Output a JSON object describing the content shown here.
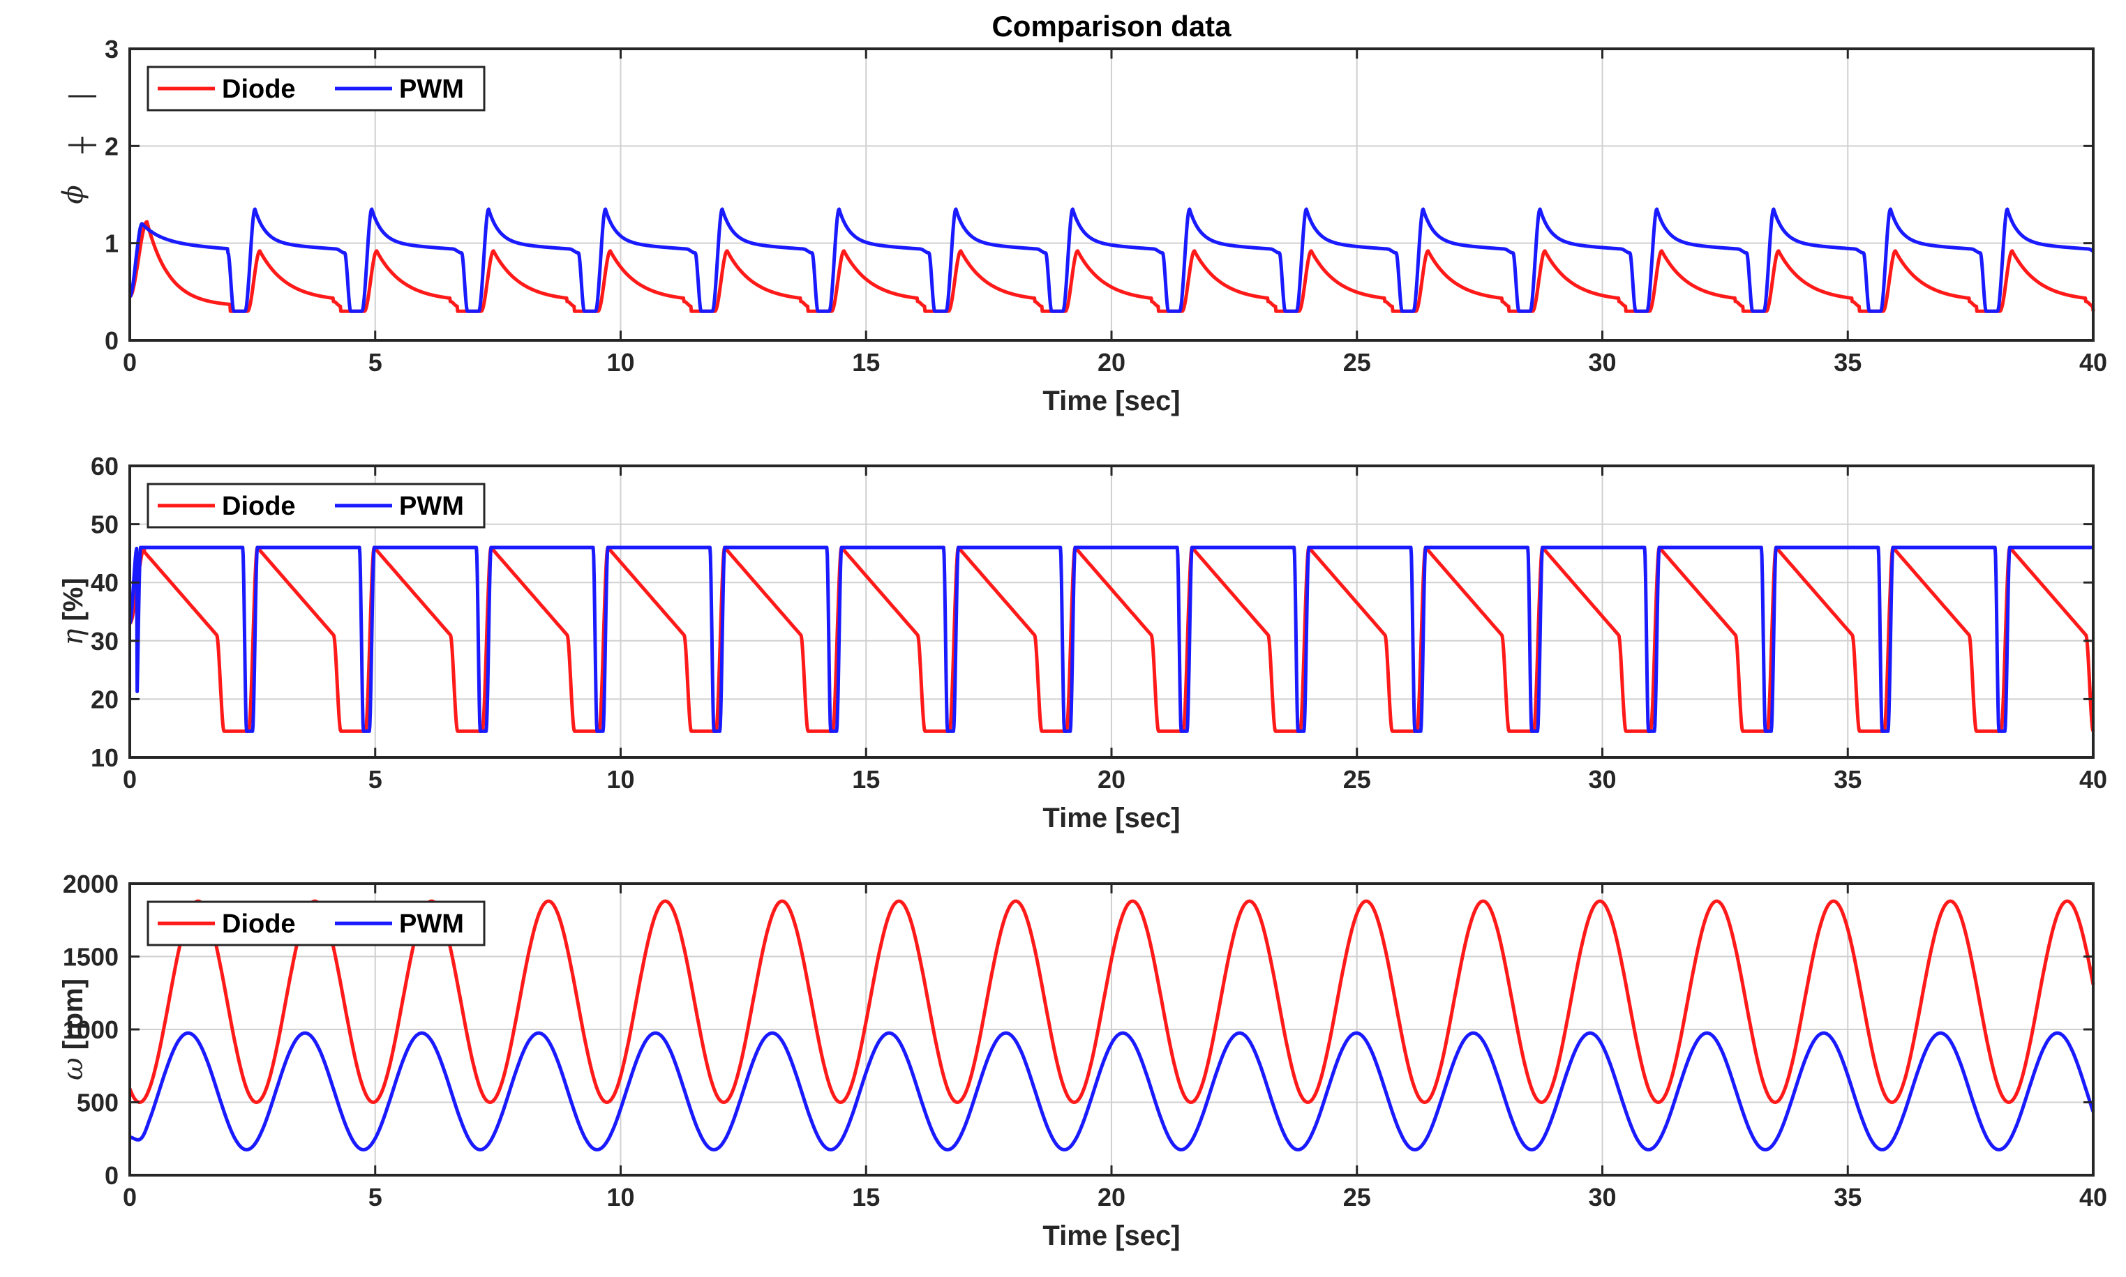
{
  "figure_title": "Comparison data",
  "colors": {
    "diode": "#ff1a1a",
    "pwm": "#1a1aff",
    "grid": "#d0d0d0",
    "axis": "#262626"
  },
  "legend": {
    "diode_label": "Diode",
    "pwm_label": "PWM"
  },
  "chart_data": [
    {
      "type": "line",
      "title": "Comparison data",
      "xlabel": "Time [sec]",
      "ylabel_symbol": "ϕ",
      "ylabel_unit": "",
      "xlim": [
        0,
        40
      ],
      "ylim": [
        0,
        3
      ],
      "xticks": [
        0,
        5,
        10,
        15,
        20,
        25,
        30,
        35,
        40
      ],
      "xtick_labels": [
        "0",
        "5",
        "10",
        "15",
        "20",
        "25",
        "30",
        "35",
        "40"
      ],
      "yticks": [
        0,
        1,
        2,
        3
      ],
      "ytick_labels": [
        "0",
        "1",
        "2",
        "3"
      ],
      "grid": true,
      "legend_position": "top-left",
      "period_sec": 2.38,
      "series": [
        {
          "name": "Diode",
          "color": "#ff1a1a",
          "initial_peak": 1.22,
          "peak": 0.92,
          "min": 0.3,
          "pre_min_level": 0.45
        },
        {
          "name": "PWM",
          "color": "#1a1aff",
          "initial_peak": 1.2,
          "peak": 1.35,
          "plateau": 1.0,
          "min": 0.3
        }
      ]
    },
    {
      "type": "line",
      "title": "",
      "xlabel": "Time [sec]",
      "ylabel_symbol": "η",
      "ylabel_unit": " [%]",
      "xlim": [
        0,
        40
      ],
      "ylim": [
        10,
        60
      ],
      "xticks": [
        0,
        5,
        10,
        15,
        20,
        25,
        30,
        35,
        40
      ],
      "xtick_labels": [
        "0",
        "5",
        "10",
        "15",
        "20",
        "25",
        "30",
        "35",
        "40"
      ],
      "yticks": [
        10,
        20,
        30,
        40,
        50,
        60
      ],
      "ytick_labels": [
        "10",
        "20",
        "30",
        "40",
        "50",
        "60"
      ],
      "grid": true,
      "legend_position": "top-left",
      "period_sec": 2.38,
      "series": [
        {
          "name": "Diode",
          "color": "#ff1a1a",
          "max": 46,
          "min": 14.5,
          "pre_drop_level": 31
        },
        {
          "name": "PWM",
          "color": "#1a1aff",
          "plateau": 46,
          "min": 14.5
        }
      ]
    },
    {
      "type": "line",
      "title": "",
      "xlabel": "Time [sec]",
      "ylabel_symbol": "ω",
      "ylabel_unit": " [rpm]",
      "xlim": [
        0,
        40
      ],
      "ylim": [
        0,
        2000
      ],
      "xticks": [
        0,
        5,
        10,
        15,
        20,
        25,
        30,
        35,
        40
      ],
      "xtick_labels": [
        "0",
        "5",
        "10",
        "15",
        "20",
        "25",
        "30",
        "35",
        "40"
      ],
      "yticks": [
        0,
        500,
        1000,
        1500,
        2000
      ],
      "ytick_labels": [
        "0",
        "500",
        "1000",
        "1500",
        "2000"
      ],
      "grid": true,
      "legend_position": "top-left",
      "period_sec": 2.38,
      "series": [
        {
          "name": "Diode",
          "color": "#ff1a1a",
          "max": 1880,
          "min": 500,
          "start": 500
        },
        {
          "name": "PWM",
          "color": "#1a1aff",
          "max": 975,
          "min": 175,
          "start": 260
        }
      ]
    }
  ]
}
